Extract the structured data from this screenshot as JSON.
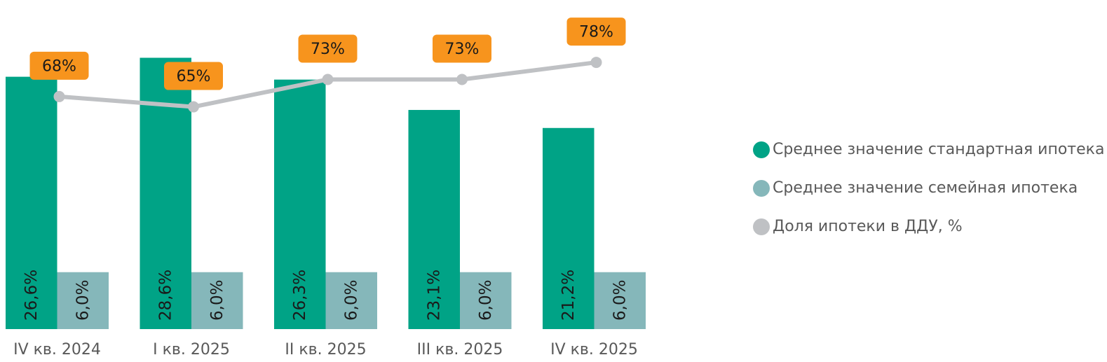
{
  "chart_data": {
    "type": "bar",
    "categories": [
      "IV кв. 2024",
      "I кв. 2025",
      "II кв. 2025",
      "III кв. 2025",
      "IV кв. 2025"
    ],
    "series": [
      {
        "name": "Среднее значение стандартная ипотека",
        "kind": "bar",
        "color": "#00a386",
        "values": [
          26.6,
          28.6,
          26.3,
          23.1,
          21.2
        ],
        "labels": [
          "26,6%",
          "28,6%",
          "26,3%",
          "23,1%",
          "21,2%"
        ]
      },
      {
        "name": "Среднее значение семейная ипотека",
        "kind": "bar",
        "color": "#85b7ba",
        "values": [
          6.0,
          6.0,
          6.0,
          6.0,
          6.0
        ],
        "labels": [
          "6,0%",
          "6,0%",
          "6,0%",
          "6,0%",
          "6,0%"
        ]
      },
      {
        "name": "Доля ипотеки в ДДУ, %",
        "kind": "line",
        "color": "#bfc1c4",
        "callout_color": "#f7941d",
        "values": [
          68,
          65,
          73,
          73,
          78
        ],
        "labels": [
          "68%",
          "65%",
          "73%",
          "73%",
          "78%"
        ]
      }
    ],
    "ylim": [
      0,
      31
    ],
    "line_ylim": [
      0,
      86
    ],
    "legend_position": "right"
  }
}
